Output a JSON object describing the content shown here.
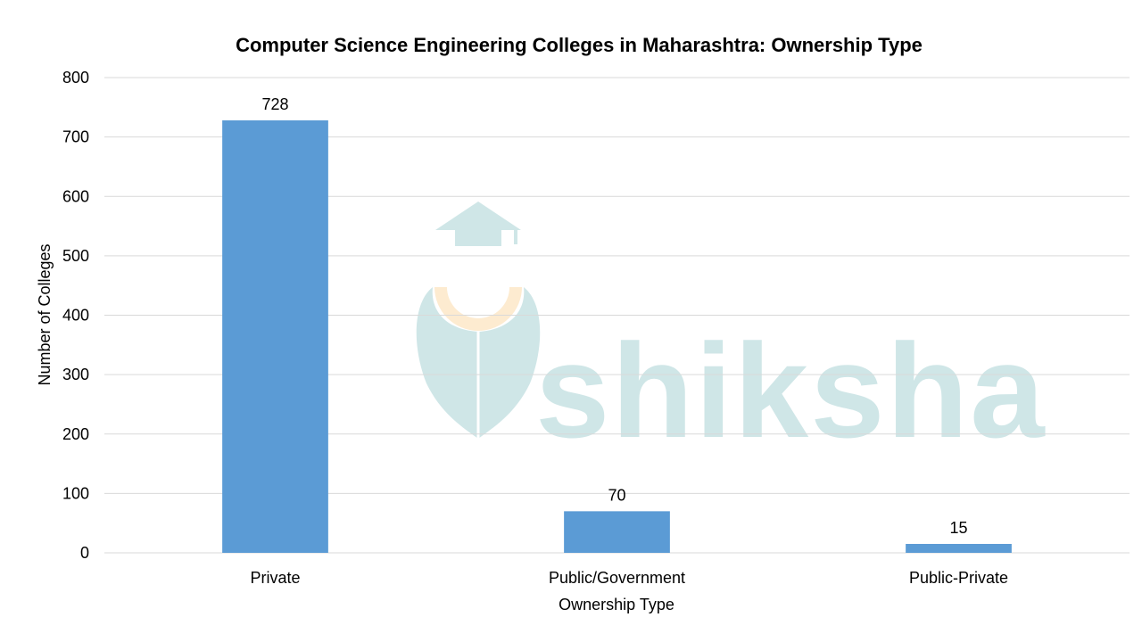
{
  "chart_data": {
    "type": "bar",
    "title": "Computer Science Engineering Colleges in Maharashtra: Ownership Type",
    "xlabel": "Ownership Type",
    "ylabel": "Number of Colleges",
    "categories": [
      "Private",
      "Public/Government",
      "Public-Private"
    ],
    "values": [
      728,
      70,
      15
    ],
    "data_labels": [
      "728",
      "70",
      "15"
    ],
    "ylim": [
      0,
      800
    ],
    "yticks": [
      0,
      100,
      200,
      300,
      400,
      500,
      600,
      700,
      800
    ],
    "grid": true,
    "legend": "none",
    "bar_color": "#5b9bd5"
  },
  "watermark": {
    "text": "shiksha",
    "logo": "shiksha-graduation-cap-logo",
    "color": "#cfe6e7",
    "accent_color": "#fdebd0"
  }
}
